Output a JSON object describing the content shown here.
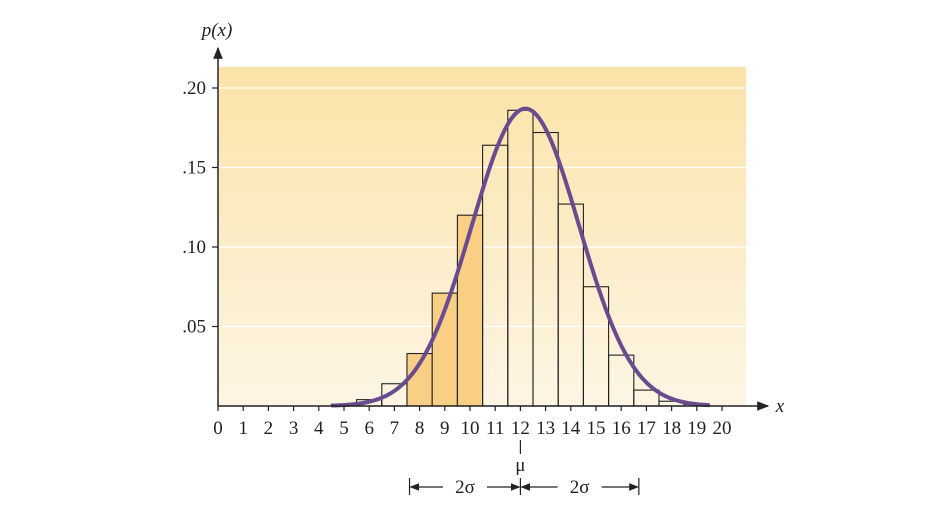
{
  "chart_data": {
    "type": "bar",
    "ylabel": "p(x)",
    "xlabel": "x",
    "x_ticks": [
      0,
      1,
      2,
      3,
      4,
      5,
      6,
      7,
      8,
      9,
      10,
      11,
      12,
      13,
      14,
      15,
      16,
      17,
      18,
      19,
      20
    ],
    "y_ticks": [
      0.05,
      0.1,
      0.15,
      0.2
    ],
    "y_tick_labels": [
      ".05",
      ".10",
      ".15",
      ".20"
    ],
    "xlim": [
      0,
      20
    ],
    "ylim": [
      0,
      0.2
    ],
    "bins": [
      5,
      6,
      7,
      8,
      9,
      10,
      11,
      12,
      13,
      14,
      15,
      16,
      17,
      18,
      19
    ],
    "values": [
      0.001,
      0.004,
      0.014,
      0.033,
      0.071,
      0.12,
      0.164,
      0.186,
      0.172,
      0.127,
      0.075,
      0.032,
      0.01,
      0.003,
      0.001
    ],
    "shaded_bins": [
      8,
      9,
      10
    ],
    "curve": {
      "type": "normal",
      "mean": 12.2,
      "sd": 2.13,
      "peak": 0.187,
      "x_range": [
        4.5,
        19.5
      ]
    },
    "mu_label": "μ",
    "mu": 12,
    "sigma_labels": [
      "2σ",
      "2σ"
    ],
    "sigma_range": [
      7.6,
      16.7
    ],
    "colors": {
      "background_top": "#fbe3a8",
      "background_bottom": "#fdf5e4",
      "shaded_bar": "#f8cf84",
      "curve": "#6b4b8f"
    }
  }
}
